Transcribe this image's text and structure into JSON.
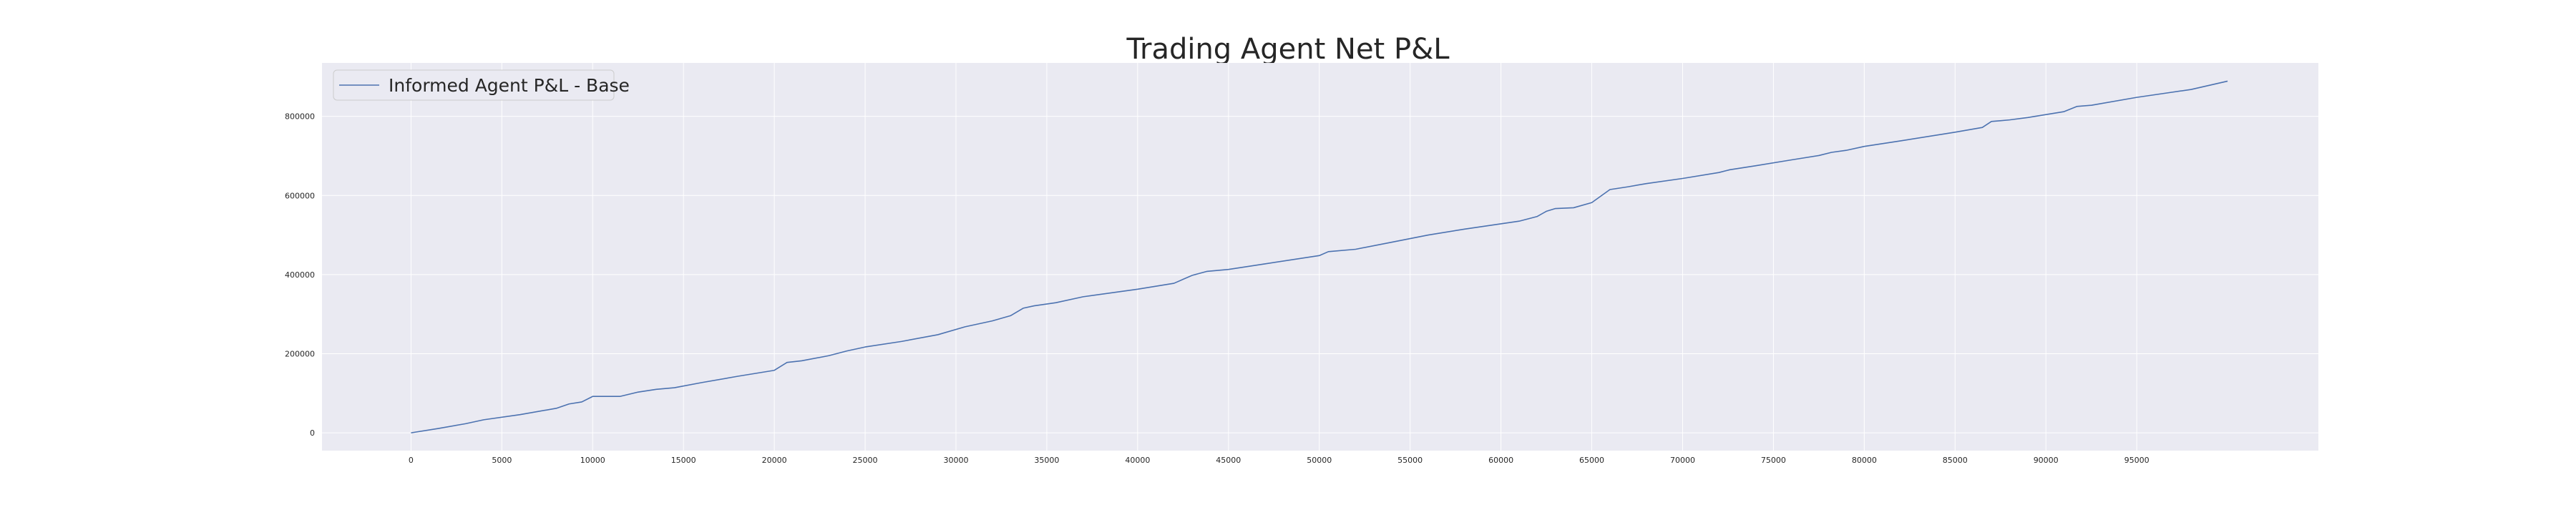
{
  "chart_data": {
    "type": "line",
    "title": "Trading Agent Net P&L",
    "xlabel": "",
    "ylabel": "",
    "xlim": [
      -4900,
      105000
    ],
    "ylim": [
      -45000,
      935000
    ],
    "x_ticks": [
      0,
      5000,
      10000,
      15000,
      20000,
      25000,
      30000,
      35000,
      40000,
      45000,
      50000,
      55000,
      60000,
      65000,
      70000,
      75000,
      80000,
      85000,
      90000,
      95000
    ],
    "x_tick_labels": [
      "0",
      "5000",
      "10000",
      "15000",
      "20000",
      "25000",
      "30000",
      "35000",
      "40000",
      "45000",
      "50000",
      "55000",
      "60000",
      "65000",
      "70000",
      "75000",
      "80000",
      "85000",
      "90000",
      "95000"
    ],
    "y_ticks": [
      0,
      200000,
      400000,
      600000,
      800000
    ],
    "y_tick_labels": [
      "0",
      "200000",
      "400000",
      "600000",
      "800000"
    ],
    "grid": true,
    "legend": {
      "position": "top-left"
    },
    "series": [
      {
        "name": "Informed Agent P&L - Base",
        "color": "#4c72b0",
        "x": [
          0,
          1500,
          3000,
          4000,
          6000,
          8000,
          8700,
          9400,
          10000,
          11500,
          12500,
          13500,
          14500,
          16000,
          18000,
          20000,
          20700,
          21500,
          23000,
          24000,
          25000,
          27000,
          29000,
          30500,
          32000,
          33000,
          33700,
          34300,
          35500,
          37000,
          40000,
          42000,
          43000,
          43800,
          45000,
          47000,
          50000,
          50500,
          52000,
          54000,
          56000,
          58000,
          61000,
          62000,
          62500,
          63000,
          64000,
          65000,
          66000,
          67000,
          68000,
          70000,
          72000,
          72600,
          74000,
          76000,
          77500,
          78200,
          79000,
          80000,
          82000,
          85000,
          86500,
          87000,
          88000,
          89000,
          91000,
          91700,
          92500,
          95000,
          98000,
          100000
        ],
        "y": [
          0,
          11000,
          23000,
          33000,
          46000,
          62000,
          73000,
          78000,
          92000,
          92000,
          103000,
          110000,
          114000,
          127000,
          143000,
          158000,
          178000,
          182000,
          195000,
          207000,
          217000,
          231000,
          248000,
          268000,
          283000,
          296000,
          315000,
          321000,
          329000,
          344000,
          363000,
          378000,
          398000,
          408000,
          413000,
          427000,
          448000,
          458000,
          464000,
          482000,
          500000,
          515000,
          535000,
          547000,
          560000,
          567000,
          569000,
          582000,
          615000,
          622000,
          630000,
          643000,
          658000,
          665000,
          675000,
          690000,
          701000,
          709000,
          714000,
          724000,
          738000,
          760000,
          772000,
          787000,
          791000,
          797000,
          812000,
          825000,
          828000,
          848000,
          868000,
          889000
        ]
      }
    ]
  }
}
